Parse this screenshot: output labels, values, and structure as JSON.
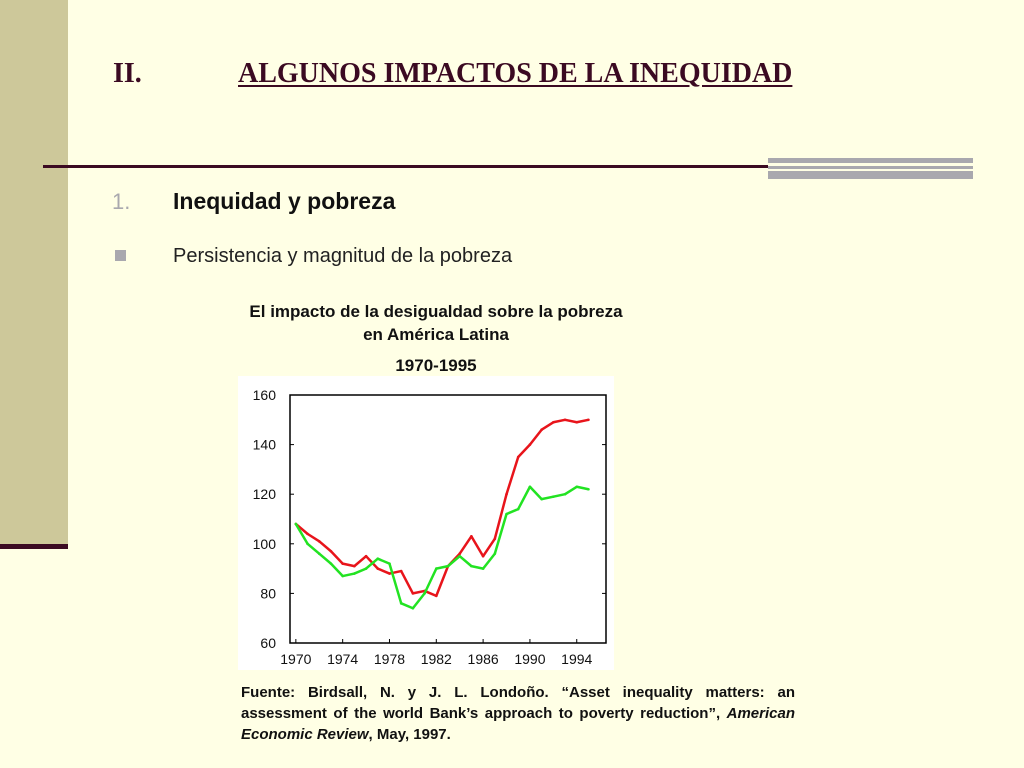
{
  "slide": {
    "title_number": "II.",
    "title_text": "ALGUNOS IMPACTOS DE LA INEQUIDAD",
    "subsection_number": "1.",
    "subsection_title": "Inequidad y pobreza",
    "bullet_text": "Persistencia y magnitud de la pobreza",
    "chart_title": "El impacto de la desigualdad sobre la pobreza en América Latina",
    "chart_period": "1970-1995",
    "source_prefix": "Fuente:  Birdsall, N. y J. L. Londoño. “Asset inequality matters: an assessment of the world Bank’s approach to poverty reduction”, ",
    "source_journal": "American Economic Review",
    "source_suffix": ", May, 1997.",
    "colors": {
      "accent": "#3B0A22",
      "band": "#CDC89A",
      "gray": "#A9A8AE",
      "background": "#FFFFE5"
    }
  },
  "chart_data": {
    "type": "line",
    "x": [
      1970,
      1971,
      1972,
      1973,
      1974,
      1975,
      1976,
      1977,
      1978,
      1979,
      1980,
      1981,
      1982,
      1983,
      1984,
      1985,
      1986,
      1987,
      1988,
      1989,
      1990,
      1991,
      1992,
      1993,
      1994,
      1995
    ],
    "series": [
      {
        "color": "#E8141B",
        "values": [
          108,
          104,
          101,
          97,
          92,
          91,
          95,
          90,
          88,
          89,
          80,
          81,
          79,
          91,
          96,
          103,
          95,
          102,
          120,
          135,
          140,
          146,
          149,
          150,
          149,
          150
        ]
      },
      {
        "color": "#22E322",
        "values": [
          108,
          100,
          96,
          92,
          87,
          88,
          90,
          94,
          92,
          76,
          74,
          80,
          90,
          91,
          95,
          91,
          90,
          96,
          112,
          114,
          123,
          118,
          119,
          120,
          123,
          122
        ]
      }
    ],
    "xticks": [
      1970,
      1974,
      1978,
      1982,
      1986,
      1990,
      1994
    ],
    "yticks": [
      60,
      80,
      100,
      120,
      140,
      160
    ],
    "xlim": [
      1969.5,
      1996.5
    ],
    "ylim": [
      60,
      160
    ],
    "grid": false,
    "legend": "none"
  }
}
